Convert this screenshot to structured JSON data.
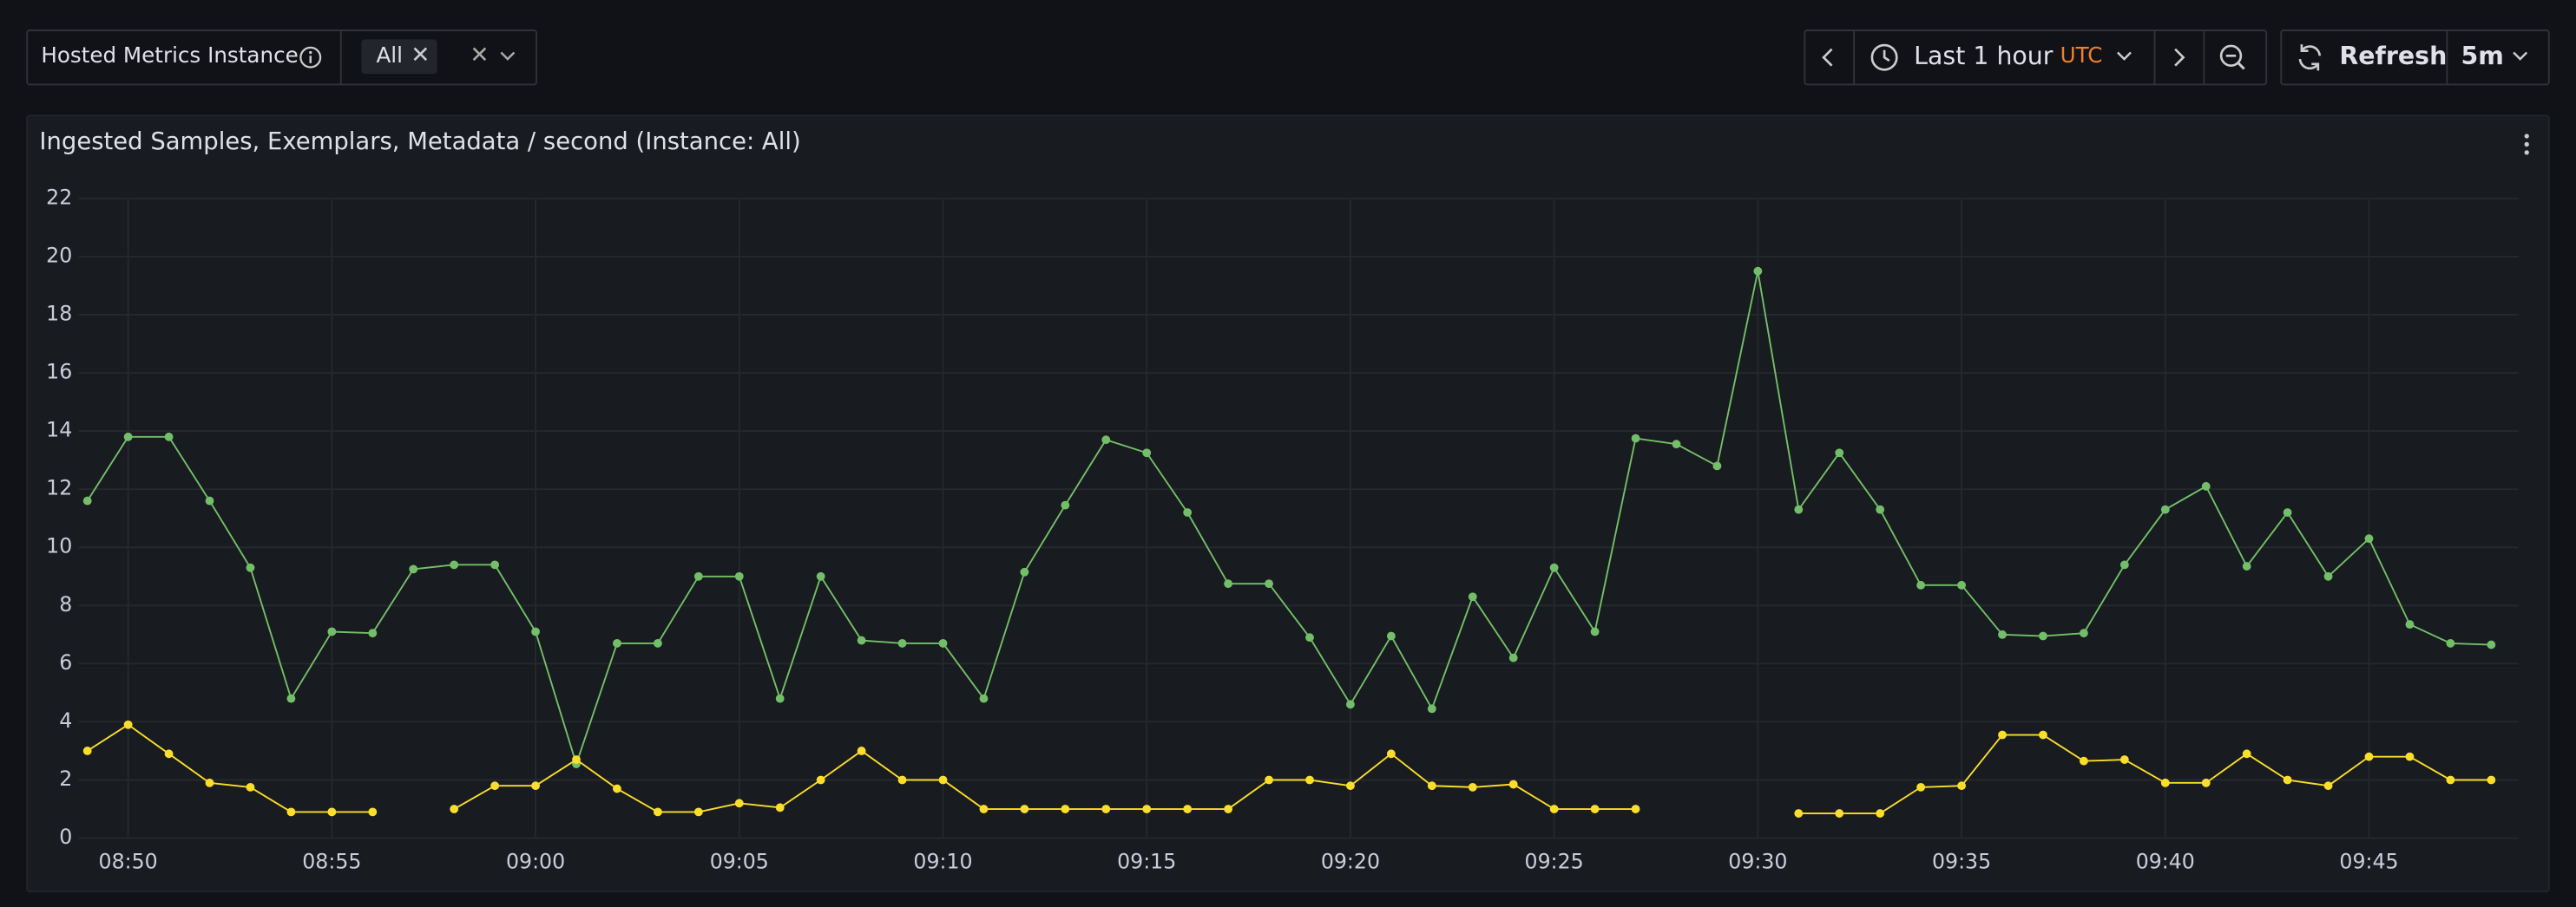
{
  "toolbar": {
    "variable_label": "Hosted Metrics Instance",
    "variable_value": "All",
    "time_range": "Last 1 hour",
    "timezone": "UTC",
    "refresh": "Refresh",
    "refresh_interval": "5m"
  },
  "chart_data": {
    "type": "line",
    "title": "Ingested Samples, Exemplars, Metadata / second (Instance: All)",
    "x": [
      null,
      "08:50",
      null,
      null,
      null,
      null,
      "08:55",
      null,
      null,
      null,
      null,
      "09:00",
      null,
      null,
      null,
      null,
      "09:05",
      null,
      null,
      null,
      null,
      "09:10",
      null,
      null,
      null,
      null,
      "09:15",
      null,
      null,
      null,
      null,
      "09:20",
      null,
      null,
      null,
      null,
      "09:25",
      null,
      null,
      null,
      null,
      "09:30",
      null,
      null,
      null,
      null,
      "09:35",
      null,
      null,
      null,
      null,
      "09:40",
      null,
      null,
      null,
      null,
      "09:45",
      null,
      null,
      null
    ],
    "series": [
      {
        "color": "#73bf69",
        "values": [
          11.6,
          13.8,
          13.8,
          11.6,
          9.3,
          4.8,
          7.1,
          7.05,
          9.25,
          9.4,
          9.4,
          7.1,
          2.55,
          6.7,
          6.7,
          9.0,
          9.0,
          4.8,
          9.0,
          6.8,
          6.7,
          6.7,
          4.8,
          9.15,
          11.45,
          13.7,
          13.25,
          11.2,
          8.75,
          8.75,
          6.9,
          4.6,
          6.95,
          4.45,
          8.3,
          6.2,
          9.3,
          7.1,
          13.75,
          13.55,
          12.8,
          19.5,
          11.3,
          13.25,
          11.3,
          8.7,
          8.7,
          7.0,
          6.95,
          7.05,
          9.4,
          11.3,
          12.1,
          9.35,
          11.2,
          9.0,
          10.3,
          7.35,
          6.7,
          6.65
        ]
      },
      {
        "color": "#fade2a",
        "values": [
          3.0,
          3.9,
          2.9,
          1.9,
          1.75,
          0.9,
          0.9,
          0.9,
          null,
          1.0,
          1.8,
          1.8,
          2.7,
          1.7,
          0.9,
          0.9,
          1.2,
          1.05,
          2.0,
          3.0,
          2.0,
          2.0,
          1.0,
          1.0,
          1.0,
          1.0,
          1.0,
          1.0,
          1.0,
          2.0,
          2.0,
          1.8,
          2.9,
          1.8,
          1.75,
          1.85,
          1.0,
          1.0,
          1.0,
          null,
          null,
          null,
          0.85,
          0.85,
          0.85,
          1.75,
          1.8,
          3.55,
          3.55,
          2.65,
          2.7,
          1.9,
          1.9,
          2.9,
          2.0,
          1.8,
          2.8,
          2.8,
          2.0,
          2.0
        ]
      }
    ],
    "ylim": [
      0,
      22
    ],
    "yticks": [
      0,
      2,
      4,
      6,
      8,
      10,
      12,
      14,
      16,
      18,
      20,
      22
    ],
    "grid": true
  }
}
